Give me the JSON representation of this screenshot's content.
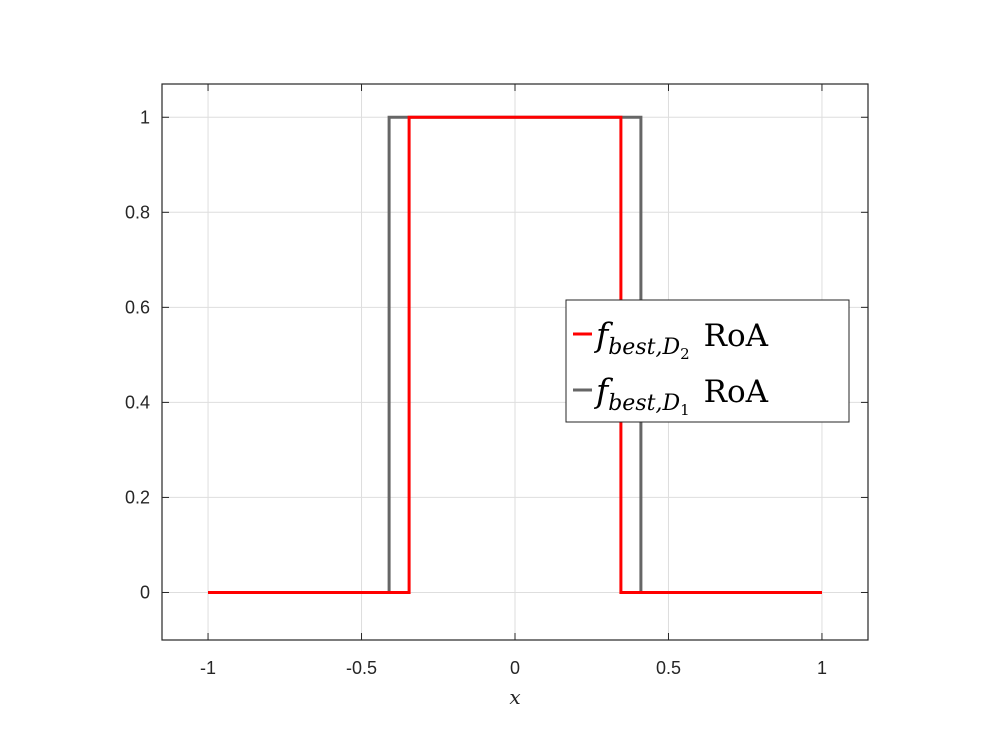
{
  "chart_data": {
    "type": "line",
    "title": "",
    "xlabel": "x",
    "ylabel": "",
    "xlim": [
      -1.15,
      1.15
    ],
    "ylim": [
      -0.1,
      1.07
    ],
    "grid": true,
    "xticks": [
      -1,
      -0.5,
      0,
      0.5,
      1
    ],
    "xtick_labels": [
      "-1",
      "-0.5",
      "0",
      "0.5",
      "1"
    ],
    "yticks": [
      0,
      0.2,
      0.4,
      0.6,
      0.8,
      1
    ],
    "ytick_labels": [
      "0",
      "0.2",
      "0.4",
      "0.6",
      "0.8",
      "1"
    ],
    "legend_position": "center-right",
    "series": [
      {
        "color": "#666666",
        "legend": {
          "sym": "f",
          "sub": "best,D",
          "subsub": "1",
          "word": "RoA"
        },
        "x": [
          -1,
          -0.41,
          -0.41,
          0.41,
          0.41,
          1
        ],
        "y": [
          0,
          0,
          1,
          1,
          0,
          0
        ]
      },
      {
        "color": "#ff0000",
        "legend": {
          "sym": "f",
          "sub": "best,D",
          "subsub": "2",
          "word": "RoA"
        },
        "x": [
          -1,
          -0.345,
          -0.345,
          0.345,
          0.345,
          1
        ],
        "y": [
          0,
          0,
          1,
          1,
          0,
          0
        ]
      }
    ]
  }
}
